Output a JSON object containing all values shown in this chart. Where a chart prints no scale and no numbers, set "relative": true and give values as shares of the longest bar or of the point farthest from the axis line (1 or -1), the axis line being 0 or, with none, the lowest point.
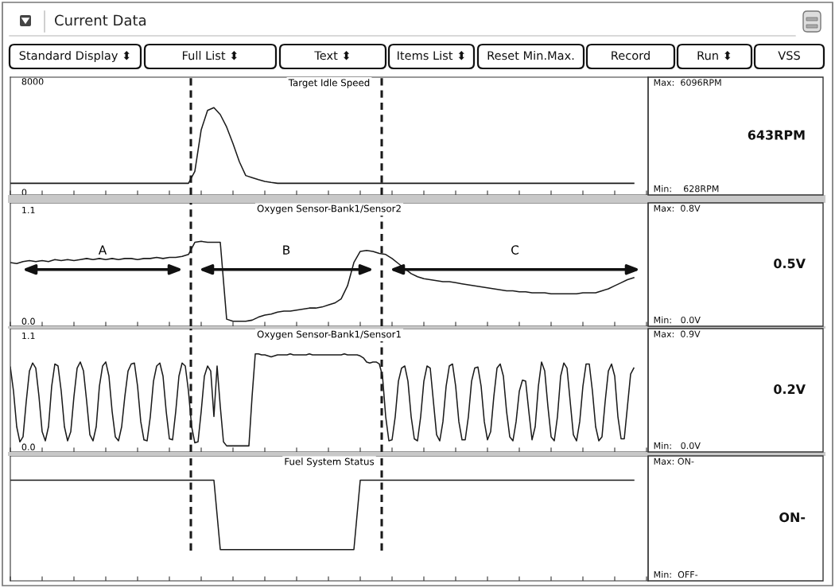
{
  "chart_data": [
    {
      "type": "other",
      "title": "Current Data",
      "annotations": [
        "Standard Display ⬍",
        "Full List ⬍",
        "Text ⬍",
        "Items List ⬍",
        "Reset Min.Max.",
        "Record",
        "Run ⬍",
        "VSS"
      ]
    },
    {
      "type": "line",
      "title": "Target Idle Speed",
      "color": "#1a1a1a",
      "ylim": [
        -200,
        8300
      ],
      "yticks": [
        0,
        8000
      ],
      "categories": [
        null,
        null,
        null,
        null,
        null,
        null,
        null,
        null,
        null,
        null,
        null,
        null,
        null,
        null,
        null,
        null,
        null,
        null,
        null,
        null,
        null,
        null,
        null,
        null,
        null,
        null,
        null,
        null,
        null,
        null,
        null,
        null,
        null,
        null,
        null,
        null,
        null,
        null,
        null,
        null,
        null,
        null,
        null,
        null,
        null,
        null,
        null,
        null,
        null,
        null,
        null,
        null,
        null,
        null,
        null,
        null,
        null,
        null,
        null,
        null,
        null,
        null,
        null,
        null,
        null,
        null,
        null,
        null,
        null,
        null,
        null,
        null,
        null,
        null,
        null,
        null,
        null,
        null,
        null,
        null,
        null,
        null,
        null,
        null,
        null,
        null,
        null,
        null,
        null,
        null,
        null,
        null,
        null,
        null,
        null,
        null,
        null,
        null,
        null,
        null,
        null
      ],
      "values": [
        640,
        640,
        640,
        640,
        640,
        640,
        640,
        640,
        640,
        640,
        640,
        640,
        640,
        640,
        640,
        640,
        640,
        640,
        640,
        640,
        640,
        640,
        640,
        640,
        640,
        640,
        640,
        640,
        640,
        1500,
        4500,
        5900,
        6100,
        5600,
        4700,
        3500,
        2200,
        1200,
        1050,
        900,
        780,
        700,
        640,
        640,
        640,
        640,
        640,
        640,
        640,
        640,
        640,
        640,
        640,
        640,
        640,
        640,
        640,
        640,
        640,
        640,
        640,
        640,
        640,
        640,
        640,
        640,
        640,
        640,
        640,
        640,
        640,
        640,
        640,
        640,
        640,
        640,
        640,
        640,
        640,
        640,
        640,
        640,
        640,
        640,
        640,
        640,
        640,
        640,
        640,
        640,
        640,
        640,
        640,
        640,
        640,
        640,
        640,
        640,
        640,
        null,
        null
      ],
      "annotations": [
        "Max:  6096RPM",
        "643RPM",
        "Min:    628RPM"
      ]
    },
    {
      "type": "line",
      "title": "Oxygen Sensor-Bank1/Sensor2",
      "color": "#1a1a1a",
      "ylim": [
        -0.05,
        1.17
      ],
      "yticks": [
        {
          "value": 0,
          "label": "0.0"
        },
        1.1
      ],
      "categories": [
        null,
        null,
        null,
        null,
        null,
        null,
        null,
        null,
        null,
        null,
        null,
        null,
        null,
        null,
        null,
        null,
        null,
        null,
        null,
        null,
        null,
        null,
        null,
        null,
        null,
        null,
        null,
        null,
        null,
        null,
        null,
        null,
        null,
        null,
        null,
        null,
        null,
        null,
        null,
        null,
        null,
        null,
        null,
        null,
        null,
        null,
        null,
        null,
        null,
        null,
        null,
        null,
        null,
        null,
        null,
        null,
        null,
        null,
        null,
        null,
        null,
        null,
        null,
        null,
        null,
        null,
        null,
        null,
        null,
        null,
        null,
        null,
        null,
        null,
        null,
        null,
        null,
        null,
        null,
        null,
        null,
        null,
        null,
        null,
        null,
        null,
        null,
        null,
        null,
        null,
        null,
        null,
        null,
        null,
        null,
        null,
        null,
        null,
        null,
        null,
        null
      ],
      "values": [
        0.58,
        0.57,
        0.59,
        0.6,
        0.59,
        0.6,
        0.59,
        0.61,
        0.6,
        0.61,
        0.6,
        0.61,
        0.62,
        0.61,
        0.62,
        0.61,
        0.62,
        0.61,
        0.62,
        0.62,
        0.61,
        0.62,
        0.62,
        0.63,
        0.62,
        0.63,
        0.63,
        0.64,
        0.66,
        0.78,
        0.79,
        0.78,
        0.78,
        0.78,
        0.02,
        0.0,
        0.0,
        0.0,
        0.01,
        0.04,
        0.06,
        0.07,
        0.09,
        0.1,
        0.1,
        0.11,
        0.12,
        0.13,
        0.13,
        0.14,
        0.16,
        0.18,
        0.22,
        0.35,
        0.58,
        0.69,
        0.7,
        0.69,
        0.67,
        0.66,
        0.62,
        0.57,
        0.52,
        0.47,
        0.44,
        0.42,
        0.41,
        0.4,
        0.39,
        0.39,
        0.38,
        0.37,
        0.36,
        0.35,
        0.34,
        0.33,
        0.32,
        0.31,
        0.3,
        0.3,
        0.29,
        0.29,
        0.28,
        0.28,
        0.28,
        0.27,
        0.27,
        0.27,
        0.27,
        0.27,
        0.28,
        0.28,
        0.28,
        0.3,
        0.32,
        0.35,
        0.38,
        0.41,
        0.43,
        null,
        null
      ],
      "annotations": [
        "Max:  0.8V",
        "0.5V",
        "Min:   0.0V",
        "A",
        "B",
        "C"
      ]
    },
    {
      "type": "line",
      "title": "Oxygen Sensor-Bank1/Sensor1",
      "color": "#1a1a1a",
      "ylim": [
        -0.05,
        1.17
      ],
      "yticks": [
        {
          "value": 0,
          "label": "0.0"
        },
        1.1
      ],
      "categories": [
        null,
        null,
        null,
        null,
        null,
        null,
        null,
        null,
        null,
        null,
        null,
        null,
        null,
        null,
        null,
        null,
        null,
        null,
        null,
        null,
        null,
        null,
        null,
        null,
        null,
        null,
        null,
        null,
        null,
        null,
        null,
        null,
        null,
        null,
        null,
        null,
        null,
        null,
        null,
        null,
        null,
        null,
        null,
        null,
        null,
        null,
        null,
        null,
        null,
        null,
        null,
        null,
        null,
        null,
        null,
        null,
        null,
        null,
        null,
        null,
        null,
        null,
        null,
        null,
        null,
        null,
        null,
        null,
        null,
        null,
        null,
        null,
        null,
        null,
        null,
        null,
        null,
        null,
        null,
        null,
        null,
        null,
        null,
        null,
        null,
        null,
        null,
        null,
        null,
        null,
        null,
        null,
        null,
        null,
        null,
        null,
        null,
        null,
        null,
        null,
        null,
        null,
        null,
        null,
        null,
        null,
        null,
        null,
        null,
        null,
        null,
        null,
        null,
        null,
        null,
        null,
        null,
        null,
        null,
        null,
        null,
        null,
        null,
        null,
        null,
        null,
        null,
        null,
        null,
        null,
        null,
        null,
        null,
        null,
        null,
        null,
        null,
        null,
        null,
        null,
        null,
        null,
        null,
        null,
        null,
        null,
        null,
        null,
        null,
        null,
        null,
        null,
        null,
        null,
        null,
        null,
        null,
        null,
        null,
        null,
        null,
        null,
        null,
        null,
        null,
        null,
        null,
        null,
        null,
        null,
        null,
        null,
        null,
        null,
        null,
        null,
        null,
        null,
        null,
        null,
        null,
        null,
        null,
        null,
        null,
        null,
        null,
        null,
        null,
        null,
        null,
        null,
        null,
        null,
        null,
        null,
        null,
        null,
        null,
        null,
        null
      ],
      "values": [
        0.79,
        0.55,
        0.2,
        0.05,
        0.1,
        0.45,
        0.75,
        0.83,
        0.78,
        0.5,
        0.15,
        0.06,
        0.2,
        0.6,
        0.82,
        0.8,
        0.55,
        0.2,
        0.06,
        0.15,
        0.5,
        0.78,
        0.84,
        0.75,
        0.45,
        0.12,
        0.06,
        0.2,
        0.6,
        0.8,
        0.84,
        0.7,
        0.35,
        0.1,
        0.06,
        0.2,
        0.5,
        0.75,
        0.82,
        0.83,
        0.6,
        0.25,
        0.07,
        0.06,
        0.3,
        0.65,
        0.8,
        0.83,
        0.7,
        0.35,
        0.08,
        0.07,
        0.35,
        0.7,
        0.83,
        0.8,
        0.55,
        0.2,
        0.04,
        0.05,
        0.35,
        0.7,
        0.8,
        0.75,
        0.3,
        0.8,
        0.4,
        0.05,
        0.01,
        0.01,
        0.01,
        0.01,
        0.01,
        0.01,
        0.01,
        0.01,
        0.5,
        0.92,
        0.92,
        0.91,
        0.91,
        0.9,
        0.89,
        0.9,
        0.91,
        0.91,
        0.91,
        0.91,
        0.92,
        0.91,
        0.91,
        0.91,
        0.91,
        0.91,
        0.92,
        0.91,
        0.91,
        0.91,
        0.91,
        0.91,
        0.91,
        0.91,
        0.91,
        0.91,
        0.91,
        0.92,
        0.91,
        0.91,
        0.91,
        0.91,
        0.9,
        0.88,
        0.84,
        0.83,
        0.84,
        0.84,
        0.82,
        0.7,
        0.3,
        0.06,
        0.07,
        0.3,
        0.65,
        0.78,
        0.8,
        0.65,
        0.3,
        0.08,
        0.06,
        0.3,
        0.65,
        0.8,
        0.78,
        0.45,
        0.12,
        0.06,
        0.25,
        0.6,
        0.8,
        0.82,
        0.6,
        0.25,
        0.07,
        0.07,
        0.3,
        0.65,
        0.78,
        0.79,
        0.6,
        0.25,
        0.07,
        0.15,
        0.5,
        0.78,
        0.82,
        0.7,
        0.35,
        0.1,
        0.06,
        0.25,
        0.55,
        0.66,
        0.65,
        0.35,
        0.07,
        0.2,
        0.6,
        0.84,
        0.75,
        0.4,
        0.1,
        0.06,
        0.3,
        0.7,
        0.83,
        0.78,
        0.45,
        0.12,
        0.06,
        0.25,
        0.6,
        0.82,
        0.82,
        0.55,
        0.2,
        0.06,
        0.1,
        0.45,
        0.75,
        0.82,
        0.7,
        0.3,
        0.08,
        0.08,
        0.4,
        0.72,
        0.78,
        null,
        null,
        null,
        null
      ],
      "annotations": [
        "Max:  0.9V",
        "0.2V",
        "Min:   0.0V"
      ]
    },
    {
      "type": "line",
      "title": "Fuel System Status",
      "color": "#1a1a1a",
      "relative": true,
      "categories": [
        null,
        null,
        null,
        null,
        null,
        null,
        null,
        null,
        null,
        null,
        null,
        null,
        null,
        null,
        null,
        null,
        null,
        null,
        null,
        null,
        null,
        null,
        null,
        null,
        null,
        null,
        null,
        null,
        null,
        null,
        null,
        null,
        null,
        null,
        null,
        null,
        null,
        null,
        null,
        null,
        null,
        null,
        null,
        null,
        null,
        null,
        null,
        null,
        null,
        null,
        null,
        null,
        null,
        null,
        null,
        null,
        null,
        null,
        null,
        null,
        null,
        null,
        null,
        null,
        null,
        null,
        null,
        null,
        null,
        null,
        null,
        null,
        null,
        null,
        null,
        null,
        null,
        null,
        null,
        null,
        null,
        null,
        null,
        null,
        null,
        null,
        null,
        null,
        null,
        null,
        null,
        null,
        null,
        null,
        null,
        null,
        null,
        null,
        null,
        null,
        null
      ],
      "values": [
        1,
        1,
        1,
        1,
        1,
        1,
        1,
        1,
        1,
        1,
        1,
        1,
        1,
        1,
        1,
        1,
        1,
        1,
        1,
        1,
        1,
        1,
        1,
        1,
        1,
        1,
        1,
        1,
        1,
        1,
        1,
        1,
        1,
        0,
        0,
        0,
        0,
        0,
        0,
        0,
        0,
        0,
        0,
        0,
        0,
        0,
        0,
        0,
        0,
        0,
        0,
        0,
        0,
        0,
        0,
        1,
        1,
        1,
        1,
        1,
        1,
        1,
        1,
        1,
        1,
        1,
        1,
        1,
        1,
        1,
        1,
        1,
        1,
        1,
        1,
        1,
        1,
        1,
        1,
        1,
        1,
        1,
        1,
        1,
        1,
        1,
        1,
        1,
        1,
        1,
        1,
        1,
        1,
        1,
        1,
        1,
        1,
        1,
        1,
        null,
        null
      ],
      "annotations": [
        "Max: ON-",
        "ON-",
        "Min:  OFF-"
      ]
    }
  ]
}
